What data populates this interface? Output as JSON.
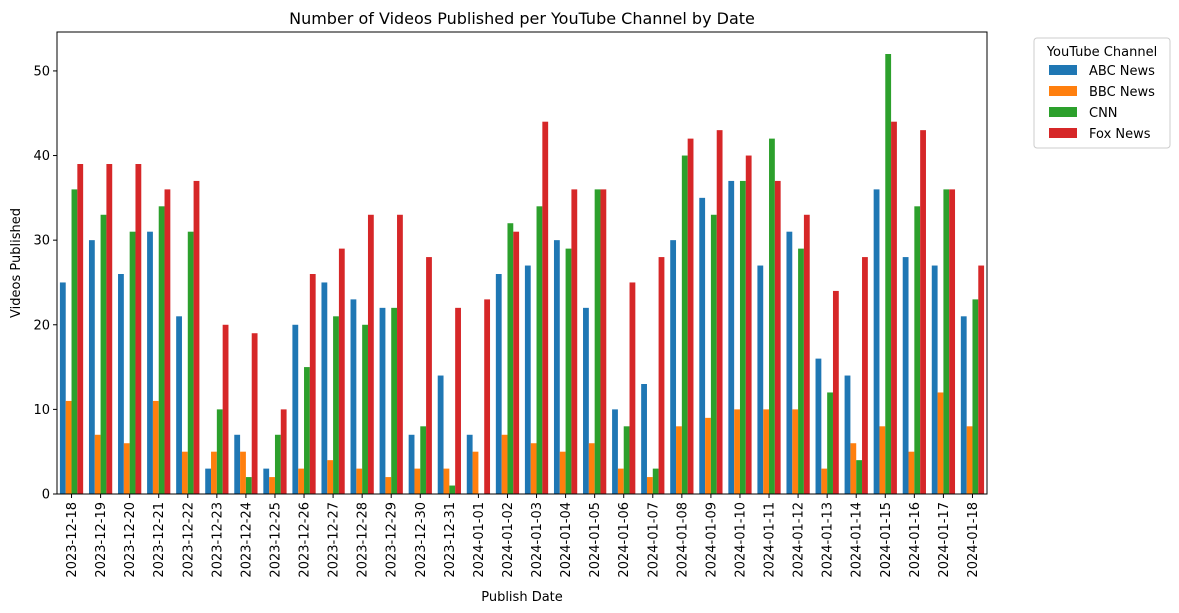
{
  "chart_data": {
    "type": "bar",
    "title": "Number of Videos Published per YouTube Channel by Date",
    "xlabel": "Publish Date",
    "ylabel": "Videos Published",
    "ylim": [
      0,
      54.6
    ],
    "yticks": [
      0,
      10,
      20,
      30,
      40,
      50
    ],
    "grid": false,
    "legend": {
      "title": "YouTube Channel",
      "placement": "outside-top-right"
    },
    "categories": [
      "2023-12-18",
      "2023-12-19",
      "2023-12-20",
      "2023-12-21",
      "2023-12-22",
      "2023-12-23",
      "2023-12-24",
      "2023-12-25",
      "2023-12-26",
      "2023-12-27",
      "2023-12-28",
      "2023-12-29",
      "2023-12-30",
      "2023-12-31",
      "2024-01-01",
      "2024-01-02",
      "2024-01-03",
      "2024-01-04",
      "2024-01-05",
      "2024-01-06",
      "2024-01-07",
      "2024-01-08",
      "2024-01-09",
      "2024-01-10",
      "2024-01-11",
      "2024-01-12",
      "2024-01-13",
      "2024-01-14",
      "2024-01-15",
      "2024-01-16",
      "2024-01-17",
      "2024-01-18"
    ],
    "series": [
      {
        "name": "ABC News",
        "color": "#1f77b4",
        "values": [
          25,
          30,
          26,
          31,
          21,
          3,
          7,
          3,
          20,
          25,
          23,
          22,
          7,
          14,
          7,
          26,
          27,
          30,
          22,
          10,
          13,
          30,
          35,
          37,
          27,
          31,
          16,
          14,
          36,
          28,
          27,
          21
        ]
      },
      {
        "name": "BBC News",
        "color": "#ff7f0e",
        "values": [
          11,
          7,
          6,
          11,
          5,
          5,
          5,
          2,
          3,
          4,
          3,
          2,
          3,
          3,
          5,
          7,
          6,
          5,
          6,
          3,
          2,
          8,
          9,
          10,
          10,
          10,
          3,
          6,
          8,
          5,
          12,
          8
        ]
      },
      {
        "name": "CNN",
        "color": "#2ca02c",
        "values": [
          36,
          33,
          31,
          34,
          31,
          10,
          2,
          7,
          15,
          21,
          20,
          22,
          8,
          1,
          0,
          32,
          34,
          29,
          36,
          8,
          3,
          40,
          33,
          37,
          42,
          29,
          12,
          4,
          52,
          34,
          36,
          23
        ]
      },
      {
        "name": "Fox News",
        "color": "#d62728",
        "values": [
          39,
          39,
          39,
          36,
          37,
          20,
          19,
          10,
          26,
          29,
          33,
          33,
          28,
          22,
          23,
          31,
          44,
          36,
          36,
          25,
          28,
          42,
          43,
          40,
          37,
          33,
          24,
          28,
          44,
          43,
          36,
          27
        ]
      }
    ]
  }
}
